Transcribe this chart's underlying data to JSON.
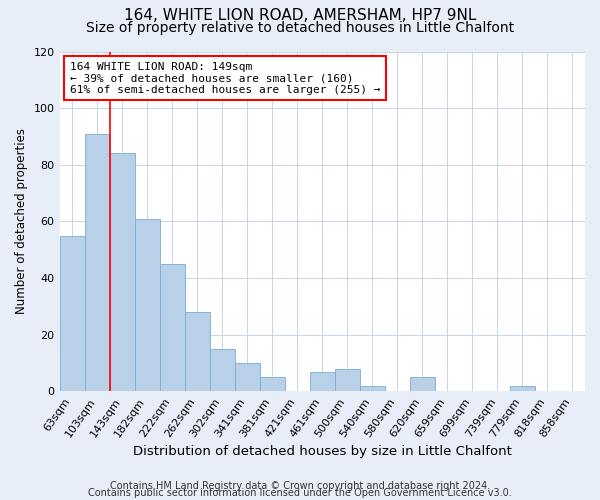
{
  "title": "164, WHITE LION ROAD, AMERSHAM, HP7 9NL",
  "subtitle": "Size of property relative to detached houses in Little Chalfont",
  "xlabel": "Distribution of detached houses by size in Little Chalfont",
  "ylabel": "Number of detached properties",
  "footer1": "Contains HM Land Registry data © Crown copyright and database right 2024.",
  "footer2": "Contains public sector information licensed under the Open Government Licence v3.0.",
  "bin_labels": [
    "63sqm",
    "103sqm",
    "143sqm",
    "182sqm",
    "222sqm",
    "262sqm",
    "302sqm",
    "341sqm",
    "381sqm",
    "421sqm",
    "461sqm",
    "500sqm",
    "540sqm",
    "580sqm",
    "620sqm",
    "659sqm",
    "699sqm",
    "739sqm",
    "779sqm",
    "818sqm",
    "858sqm"
  ],
  "bar_values": [
    55,
    91,
    84,
    61,
    45,
    28,
    15,
    10,
    5,
    0,
    7,
    8,
    2,
    0,
    5,
    0,
    0,
    0,
    2,
    0,
    0
  ],
  "bar_color": "#b8d0e8",
  "bar_edge_color": "#7aadd0",
  "vline_color": "red",
  "annotation_text": "164 WHITE LION ROAD: 149sqm\n← 39% of detached houses are smaller (160)\n61% of semi-detached houses are larger (255) →",
  "annotation_box_color": "white",
  "annotation_box_edge": "red",
  "ylim": [
    0,
    120
  ],
  "yticks": [
    0,
    20,
    40,
    60,
    80,
    100,
    120
  ],
  "background_color": "#e8eef8",
  "plot_background": "white",
  "grid_color": "#c8d4e8",
  "title_fontsize": 11,
  "subtitle_fontsize": 10,
  "xlabel_fontsize": 9.5,
  "ylabel_fontsize": 8.5,
  "tick_fontsize": 8,
  "annot_fontsize": 8,
  "footer_fontsize": 7
}
